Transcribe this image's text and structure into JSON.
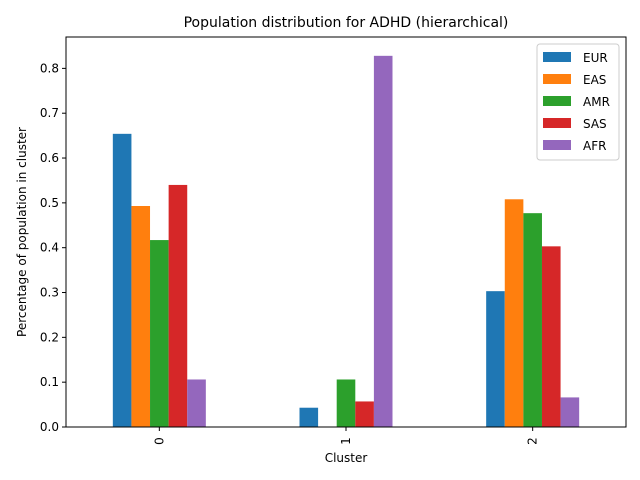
{
  "chart_data": {
    "type": "bar",
    "title": "Population distribution for ADHD (hierarchical)",
    "xlabel": "Cluster",
    "ylabel": "Percentage of population in cluster",
    "categories": [
      "0",
      "1",
      "2"
    ],
    "ylim": [
      0,
      0.87
    ],
    "yticks": [
      0.0,
      0.1,
      0.2,
      0.3,
      0.4,
      0.5,
      0.6,
      0.7,
      0.8
    ],
    "ytick_labels": [
      "0.0",
      "0.1",
      "0.2",
      "0.3",
      "0.4",
      "0.5",
      "0.6",
      "0.7",
      "0.8"
    ],
    "grid": false,
    "legend_position": "top-right",
    "series": [
      {
        "name": "EUR",
        "color": "#1f77b4",
        "values": [
          0.654,
          0.043,
          0.303
        ]
      },
      {
        "name": "EAS",
        "color": "#ff7f0e",
        "values": [
          0.493,
          0.0,
          0.508
        ]
      },
      {
        "name": "AMR",
        "color": "#2ca02c",
        "values": [
          0.417,
          0.106,
          0.477
        ]
      },
      {
        "name": "SAS",
        "color": "#d62728",
        "values": [
          0.54,
          0.057,
          0.403
        ]
      },
      {
        "name": "AFR",
        "color": "#9467bd",
        "values": [
          0.106,
          0.828,
          0.066
        ]
      }
    ]
  }
}
